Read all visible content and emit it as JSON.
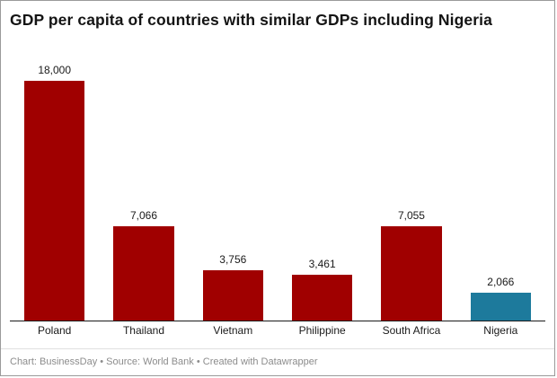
{
  "title": "GDP per capita of countries with similar GDPs including Nigeria",
  "footer": "Chart: BusinessDay • Source: World Bank • Created with Datawrapper",
  "colors": {
    "bar_default": "#a00000",
    "bar_highlight": "#1d7a9c",
    "axis": "#1a1a1a",
    "footer_text": "#8c8c8c"
  },
  "chart_data": {
    "type": "bar",
    "title": "GDP per capita of countries with similar GDPs including Nigeria",
    "categories": [
      "Poland",
      "Thailand",
      "Vietnam",
      "Philippine",
      "South Africa",
      "Nigeria"
    ],
    "values": [
      18000,
      7066,
      3756,
      3461,
      7055,
      2066
    ],
    "value_labels": [
      "18,000",
      "7,066",
      "3,756",
      "3,461",
      "7,055",
      "2,066"
    ],
    "highlight_index": 5,
    "xlabel": "",
    "ylabel": "",
    "ylim": [
      0,
      18000
    ],
    "grid": false,
    "legend": false
  }
}
